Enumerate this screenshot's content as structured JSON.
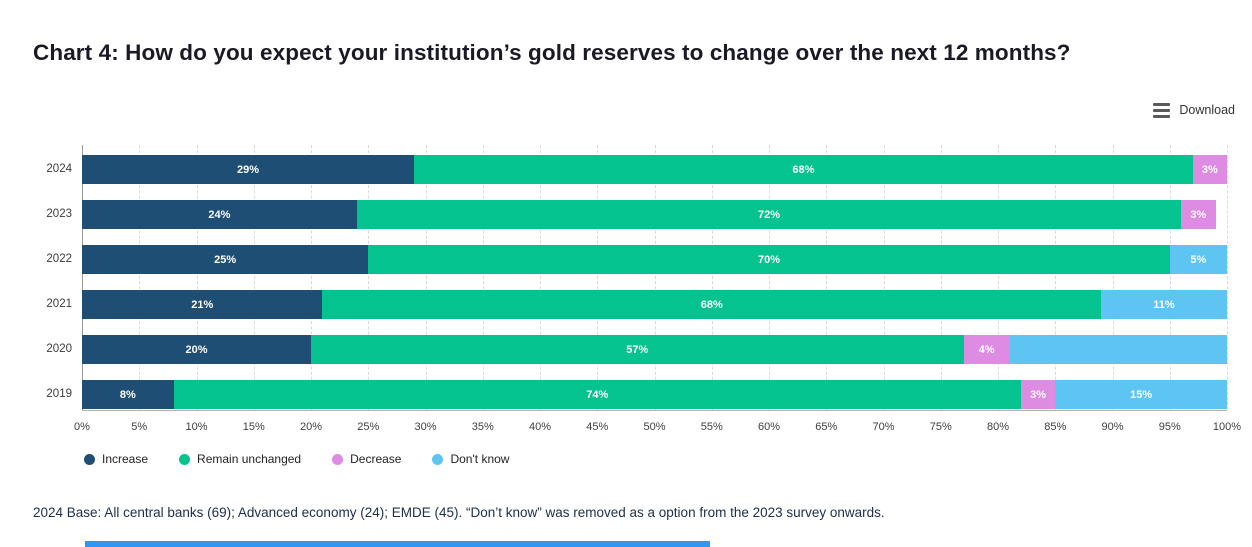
{
  "title": "Chart 4: How do you expect your institution’s gold reserves to change over the next 12 months?",
  "toolbar": {
    "download_label": "Download"
  },
  "footnote": "2024 Base: All central banks (69); Advanced economy (24); EMDE (45). “Don’t know” was removed as a option from the 2023 survey onwards.",
  "chart_data": {
    "type": "bar",
    "orientation": "horizontal-stacked",
    "title": "Chart 4: How do you expect your institution’s gold reserves to change over the next 12 months?",
    "categories": [
      "2024",
      "2023",
      "2022",
      "2021",
      "2020",
      "2019"
    ],
    "series": [
      {
        "name": "Increase",
        "color": "#1e4e74",
        "values": [
          29,
          24,
          25,
          21,
          20,
          8
        ],
        "labels": [
          "29%",
          "24%",
          "25%",
          "21%",
          "20%",
          "8%"
        ]
      },
      {
        "name": "Remain unchanged",
        "color": "#05c38e",
        "values": [
          68,
          72,
          70,
          68,
          57,
          74
        ],
        "labels": [
          "68%",
          "72%",
          "70%",
          "68%",
          "57%",
          "74%"
        ]
      },
      {
        "name": "Decrease",
        "color": "#de8be4",
        "values": [
          3,
          3,
          0,
          0,
          4,
          3
        ],
        "labels": [
          "3%",
          "3%",
          "",
          "",
          "4%",
          "3%"
        ]
      },
      {
        "name": "Don't know",
        "color": "#5ec5f2",
        "values": [
          0,
          0,
          5,
          11,
          19,
          15
        ],
        "labels": [
          "",
          "",
          "5%",
          "11%",
          "",
          "15%"
        ]
      }
    ],
    "x_ticks": [
      "0%",
      "5%",
      "10%",
      "15%",
      "20%",
      "25%",
      "30%",
      "35%",
      "40%",
      "45%",
      "50%",
      "55%",
      "60%",
      "65%",
      "70%",
      "75%",
      "80%",
      "85%",
      "90%",
      "95%",
      "100%"
    ],
    "xlim": [
      0,
      100
    ],
    "grid": "vertical-dashed",
    "legend_position": "bottom-left"
  }
}
